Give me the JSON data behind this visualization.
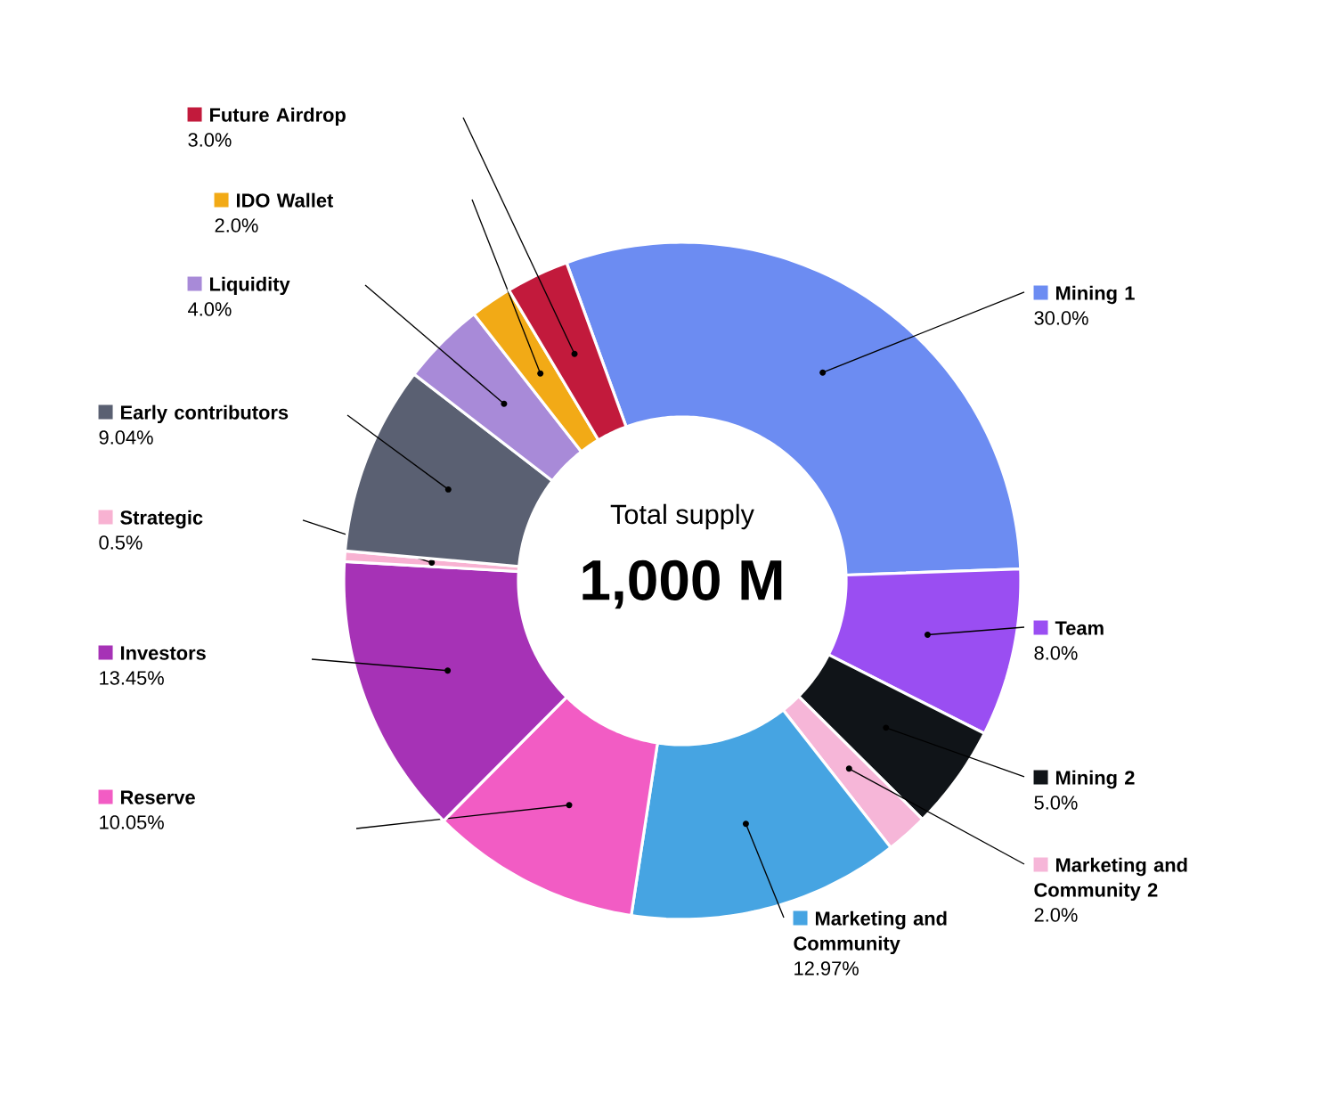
{
  "chart_data": {
    "type": "donut",
    "categories": [
      "Mining 1",
      "Team",
      "Mining 2",
      "Marketing and Community 2",
      "Marketing and Community",
      "Reserve",
      "Investors",
      "Strategic",
      "Early contributors",
      "Liquidity",
      "IDO Wallet",
      "Future Airdrop"
    ],
    "values": [
      30.0,
      8.0,
      5.0,
      2.0,
      12.97,
      10.05,
      13.45,
      0.5,
      9.04,
      4.0,
      2.0,
      3.0
    ],
    "value_labels": [
      "30.0%",
      "8.0%",
      "5.0%",
      "2.0%",
      "12.97%",
      "10.05%",
      "13.45%",
      "0.5%",
      "9.04%",
      "4.0%",
      "2.0%",
      "3.0%"
    ],
    "colors": [
      "#6c8cf2",
      "#9a4ef2",
      "#101418",
      "#f6b6d8",
      "#46a4e2",
      "#f25cc4",
      "#a632b6",
      "#f8b2d2",
      "#5a6072",
      "#a88ad8",
      "#f2aa16",
      "#c21a3c"
    ],
    "annotations": [
      "Total supply",
      "1,000 M"
    ],
    "legend": "left"
  }
}
